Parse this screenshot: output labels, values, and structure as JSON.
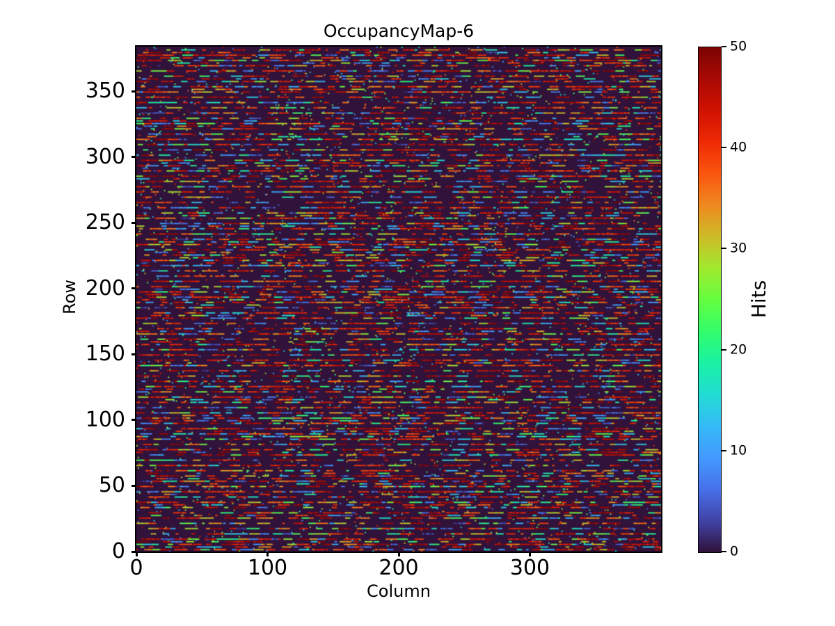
{
  "chart_data": {
    "type": "heatmap",
    "title": "OccupancyMap-6",
    "xlabel": "Column",
    "ylabel": "Row",
    "colorbar_label": "Hits",
    "colormap": "turbo",
    "vmin": 0,
    "vmax": 50,
    "n_cols": 400,
    "n_rows": 384,
    "xlim": [
      0,
      400
    ],
    "ylim": [
      0,
      384
    ],
    "x_ticks": [
      0,
      100,
      200,
      300
    ],
    "y_ticks": [
      0,
      50,
      100,
      150,
      200,
      250,
      300,
      350
    ],
    "colorbar_ticks": [
      0,
      10,
      20,
      30,
      40,
      50
    ],
    "grid": false,
    "legend_position": "colorbar-right",
    "background_color": "#ffffff",
    "zero_value_color": "#30123b",
    "max_value_color": "#7a0403",
    "data_synthesis": {
      "note": "Dense pseudo-random occupancy pattern: roughly every 4th detector row is densely filled with short multi-colored runs of hits (red/high values dominant), remaining rows nearly empty with sparse isolated hits. Individual cell values are not legible at screenshot scale and are regenerated procedurally from these parameters.",
      "seed": 6,
      "active_row_period": 4,
      "semi_active_row_probability": 0.4,
      "run_start_probability": 0.52,
      "run_length_cells": [
        2,
        10
      ],
      "quiet_cell_hit_probability": 0.022,
      "value_distribution": {
        "high_38_50": 0.5,
        "low_3_16": 0.22,
        "mid_17_30": 0.14,
        "upper_mid_30_38": 0.14
      }
    }
  }
}
